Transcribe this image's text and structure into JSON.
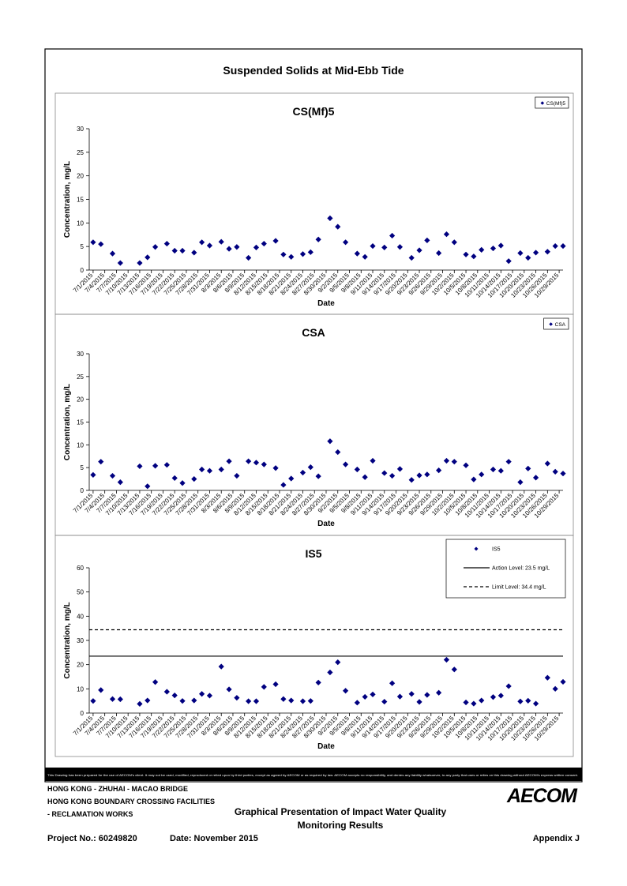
{
  "title": "Suspended Solids at Mid-Ebb Tide",
  "chart_data": [
    {
      "type": "scatter",
      "title": "CS(Mf)5",
      "x_label": "Date",
      "y_label": "Concentration, mg/L",
      "x": [
        "7/1/2015",
        "7/3/2015",
        "7/6/2015",
        "7/8/2015",
        "7/13/2015",
        "7/15/2015",
        "7/17/2015",
        "7/20/2015",
        "7/22/2015",
        "7/24/2015",
        "7/27/2015",
        "7/29/2015",
        "7/31/2015",
        "8/3/2015",
        "8/5/2015",
        "8/7/2015",
        "8/10/2015",
        "8/12/2015",
        "8/14/2015",
        "8/17/2015",
        "8/19/2015",
        "8/21/2015",
        "8/24/2015",
        "8/26/2015",
        "8/28/2015",
        "8/31/2015",
        "9/2/2015",
        "9/4/2015",
        "9/7/2015",
        "9/9/2015",
        "9/11/2015",
        "9/14/2015",
        "9/16/2015",
        "9/18/2015",
        "9/21/2015",
        "9/23/2015",
        "9/25/2015",
        "9/28/2015",
        "9/30/2015",
        "10/2/2015",
        "10/5/2015",
        "10/7/2015",
        "10/9/2015",
        "10/12/2015",
        "10/14/2015",
        "10/16/2015",
        "10/19/2015",
        "10/21/2015",
        "10/23/2015",
        "10/26/2015",
        "10/28/2015",
        "10/30/2015"
      ],
      "series": [
        {
          "name": "CS(Mf)5",
          "color": "#000080",
          "values": [
            5.9,
            5.5,
            3.5,
            1.5,
            1.5,
            2.7,
            4.9,
            5.6,
            4.1,
            4.1,
            3.7,
            5.9,
            5.2,
            6.0,
            4.5,
            4.9,
            2.6,
            4.8,
            5.6,
            6.2,
            3.3,
            2.8,
            3.4,
            3.8,
            6.5,
            11.0,
            9.2,
            5.9,
            3.5,
            2.8,
            5.1,
            4.8,
            7.3,
            4.9,
            2.6,
            4.2,
            6.3,
            3.6,
            7.6,
            5.9,
            3.3,
            2.9,
            4.3,
            4.6,
            5.2,
            1.9,
            3.6,
            2.6,
            3.7,
            3.9,
            5.1,
            5.1
          ]
        }
      ],
      "xlim": [
        "6/30/2015",
        "10/30/2015"
      ],
      "xticks": [
        "7/1/2015",
        "7/4/2015",
        "7/7/2015",
        "7/10/2015",
        "7/13/2015",
        "7/16/2015",
        "7/19/2015",
        "7/22/2015",
        "7/25/2015",
        "7/28/2015",
        "7/31/2015",
        "8/3/2015",
        "8/6/2015",
        "8/9/2015",
        "8/12/2015",
        "8/15/2015",
        "8/18/2015",
        "8/21/2015",
        "8/24/2015",
        "8/27/2015",
        "8/30/2015",
        "9/2/2015",
        "9/5/2015",
        "9/8/2015",
        "9/11/2015",
        "9/14/2015",
        "9/17/2015",
        "9/20/2015",
        "9/23/2015",
        "9/26/2015",
        "9/29/2015",
        "10/2/2015",
        "10/5/2015",
        "10/8/2015",
        "10/11/2015",
        "10/14/2015",
        "10/17/2015",
        "10/20/2015",
        "10/23/2015",
        "10/26/2015",
        "10/29/2015"
      ],
      "ylim": [
        0,
        30
      ],
      "yticks": [
        0,
        5,
        10,
        15,
        20,
        25,
        30
      ],
      "grid": false,
      "legend": "top-right"
    },
    {
      "type": "scatter",
      "title": "CSA",
      "x_label": "Date",
      "y_label": "Concentration, mg/L",
      "x": [
        "7/1/2015",
        "7/3/2015",
        "7/6/2015",
        "7/8/2015",
        "7/13/2015",
        "7/15/2015",
        "7/17/2015",
        "7/20/2015",
        "7/22/2015",
        "7/24/2015",
        "7/27/2015",
        "7/29/2015",
        "7/31/2015",
        "8/3/2015",
        "8/5/2015",
        "8/7/2015",
        "8/10/2015",
        "8/12/2015",
        "8/14/2015",
        "8/17/2015",
        "8/19/2015",
        "8/21/2015",
        "8/24/2015",
        "8/26/2015",
        "8/28/2015",
        "8/31/2015",
        "9/2/2015",
        "9/4/2015",
        "9/7/2015",
        "9/9/2015",
        "9/11/2015",
        "9/14/2015",
        "9/16/2015",
        "9/18/2015",
        "9/21/2015",
        "9/23/2015",
        "9/25/2015",
        "9/28/2015",
        "9/30/2015",
        "10/2/2015",
        "10/5/2015",
        "10/7/2015",
        "10/9/2015",
        "10/12/2015",
        "10/14/2015",
        "10/16/2015",
        "10/19/2015",
        "10/21/2015",
        "10/23/2015",
        "10/26/2015",
        "10/28/2015",
        "10/30/2015"
      ],
      "series": [
        {
          "name": "CSA",
          "color": "#000080",
          "values": [
            3.4,
            6.3,
            3.2,
            1.8,
            5.3,
            0.9,
            5.4,
            5.6,
            2.7,
            1.6,
            2.5,
            4.6,
            4.3,
            4.6,
            6.4,
            3.2,
            6.4,
            6.1,
            5.7,
            4.9,
            1.2,
            2.6,
            3.9,
            5.1,
            3.1,
            10.8,
            8.4,
            5.7,
            4.6,
            2.9,
            6.5,
            3.8,
            3.2,
            4.7,
            2.3,
            3.3,
            3.5,
            4.4,
            6.5,
            6.3,
            5.5,
            2.4,
            3.5,
            4.6,
            4.3,
            6.3,
            1.8,
            4.8,
            2.8,
            5.9,
            4.1,
            3.7
          ]
        }
      ],
      "xlim": [
        "6/30/2015",
        "10/30/2015"
      ],
      "xticks": [
        "7/1/2015",
        "7/4/2015",
        "7/7/2015",
        "7/10/2015",
        "7/13/2015",
        "7/16/2015",
        "7/19/2015",
        "7/22/2015",
        "7/25/2015",
        "7/28/2015",
        "7/31/2015",
        "8/3/2015",
        "8/6/2015",
        "8/9/2015",
        "8/12/2015",
        "8/15/2015",
        "8/18/2015",
        "8/21/2015",
        "8/24/2015",
        "8/27/2015",
        "8/30/2015",
        "9/2/2015",
        "9/5/2015",
        "9/8/2015",
        "9/11/2015",
        "9/14/2015",
        "9/17/2015",
        "9/20/2015",
        "9/23/2015",
        "9/26/2015",
        "9/29/2015",
        "10/2/2015",
        "10/5/2015",
        "10/8/2015",
        "10/11/2015",
        "10/14/2015",
        "10/17/2015",
        "10/20/2015",
        "10/23/2015",
        "10/26/2015",
        "10/29/2015"
      ],
      "ylim": [
        0,
        30
      ],
      "yticks": [
        0,
        5,
        10,
        15,
        20,
        25,
        30
      ],
      "grid": false,
      "legend": "top-right"
    },
    {
      "type": "scatter",
      "title": "IS5",
      "x_label": "Date",
      "y_label": "Concentration, mg/L",
      "x": [
        "7/1/2015",
        "7/3/2015",
        "7/6/2015",
        "7/8/2015",
        "7/13/2015",
        "7/15/2015",
        "7/17/2015",
        "7/20/2015",
        "7/22/2015",
        "7/24/2015",
        "7/27/2015",
        "7/29/2015",
        "7/31/2015",
        "8/3/2015",
        "8/5/2015",
        "8/7/2015",
        "8/10/2015",
        "8/12/2015",
        "8/14/2015",
        "8/17/2015",
        "8/19/2015",
        "8/21/2015",
        "8/24/2015",
        "8/26/2015",
        "8/28/2015",
        "8/31/2015",
        "9/2/2015",
        "9/4/2015",
        "9/7/2015",
        "9/9/2015",
        "9/11/2015",
        "9/14/2015",
        "9/16/2015",
        "9/18/2015",
        "9/21/2015",
        "9/23/2015",
        "9/25/2015",
        "9/28/2015",
        "9/30/2015",
        "10/2/2015",
        "10/5/2015",
        "10/7/2015",
        "10/9/2015",
        "10/12/2015",
        "10/14/2015",
        "10/16/2015",
        "10/19/2015",
        "10/21/2015",
        "10/23/2015",
        "10/26/2015",
        "10/28/2015",
        "10/30/2015"
      ],
      "series": [
        {
          "name": "IS5",
          "color": "#000080",
          "values": [
            5.0,
            9.5,
            5.8,
            5.7,
            3.8,
            5.2,
            12.8,
            8.8,
            7.3,
            5.0,
            5.2,
            7.9,
            7.2,
            19.2,
            9.8,
            6.3,
            4.9,
            4.9,
            10.8,
            11.9,
            5.8,
            5.2,
            4.9,
            5.0,
            12.6,
            16.8,
            21.0,
            9.2,
            4.3,
            6.7,
            7.7,
            4.7,
            12.3,
            6.8,
            7.9,
            4.6,
            7.5,
            8.4,
            22.0,
            18.0,
            4.4,
            3.9,
            5.2,
            6.6,
            7.2,
            11.1,
            4.8,
            5.1,
            3.9,
            14.6,
            10.0,
            12.9
          ]
        }
      ],
      "reference_lines": [
        {
          "value": 23.5,
          "label": "Action Level: 23.5 mg/L",
          "style": "solid",
          "color": "#000000"
        },
        {
          "value": 34.4,
          "label": "Limit Level: 34.4 mg/L",
          "style": "dashed",
          "color": "#000000"
        }
      ],
      "xlim": [
        "6/30/2015",
        "10/30/2015"
      ],
      "xticks": [
        "7/1/2015",
        "7/4/2015",
        "7/7/2015",
        "7/10/2015",
        "7/13/2015",
        "7/16/2015",
        "7/19/2015",
        "7/22/2015",
        "7/25/2015",
        "7/28/2015",
        "7/31/2015",
        "8/3/2015",
        "8/6/2015",
        "8/9/2015",
        "8/12/2015",
        "8/15/2015",
        "8/18/2015",
        "8/21/2015",
        "8/24/2015",
        "8/27/2015",
        "8/30/2015",
        "9/2/2015",
        "9/5/2015",
        "9/8/2015",
        "9/11/2015",
        "9/14/2015",
        "9/17/2015",
        "9/20/2015",
        "9/23/2015",
        "9/26/2015",
        "9/29/2015",
        "10/2/2015",
        "10/5/2015",
        "10/8/2015",
        "10/11/2015",
        "10/14/2015",
        "10/17/2015",
        "10/20/2015",
        "10/23/2015",
        "10/26/2015",
        "10/29/2015"
      ],
      "ylim": [
        0,
        60
      ],
      "yticks": [
        0,
        10,
        20,
        30,
        40,
        50,
        60
      ],
      "grid": false,
      "legend": "top-right"
    }
  ],
  "disclaimer": "This Drawing has been prepared for the use of AECOM's client. It may not be used, modified, reproduced or relied upon by third parties, except as agreed by AECOM or as required by law. AECOM accepts no responsibility, and denies any liability whatsoever, to any party that uses or relies on this drawing without AECOM's express written consent.",
  "footer": {
    "project_lines": [
      "HONG KONG - ZHUHAI - MACAO BRIDGE",
      "HONG KONG BOUNDARY CROSSING FACILITIES",
      "- RECLAMATION WORKS"
    ],
    "logo": "AECOM",
    "drawing_title": [
      "Graphical Presentation of Impact Water Quality",
      "Monitoring Results"
    ],
    "project_no": "Project No.: 60249820",
    "date": "Date: November 2015",
    "appendix": "Appendix J"
  }
}
